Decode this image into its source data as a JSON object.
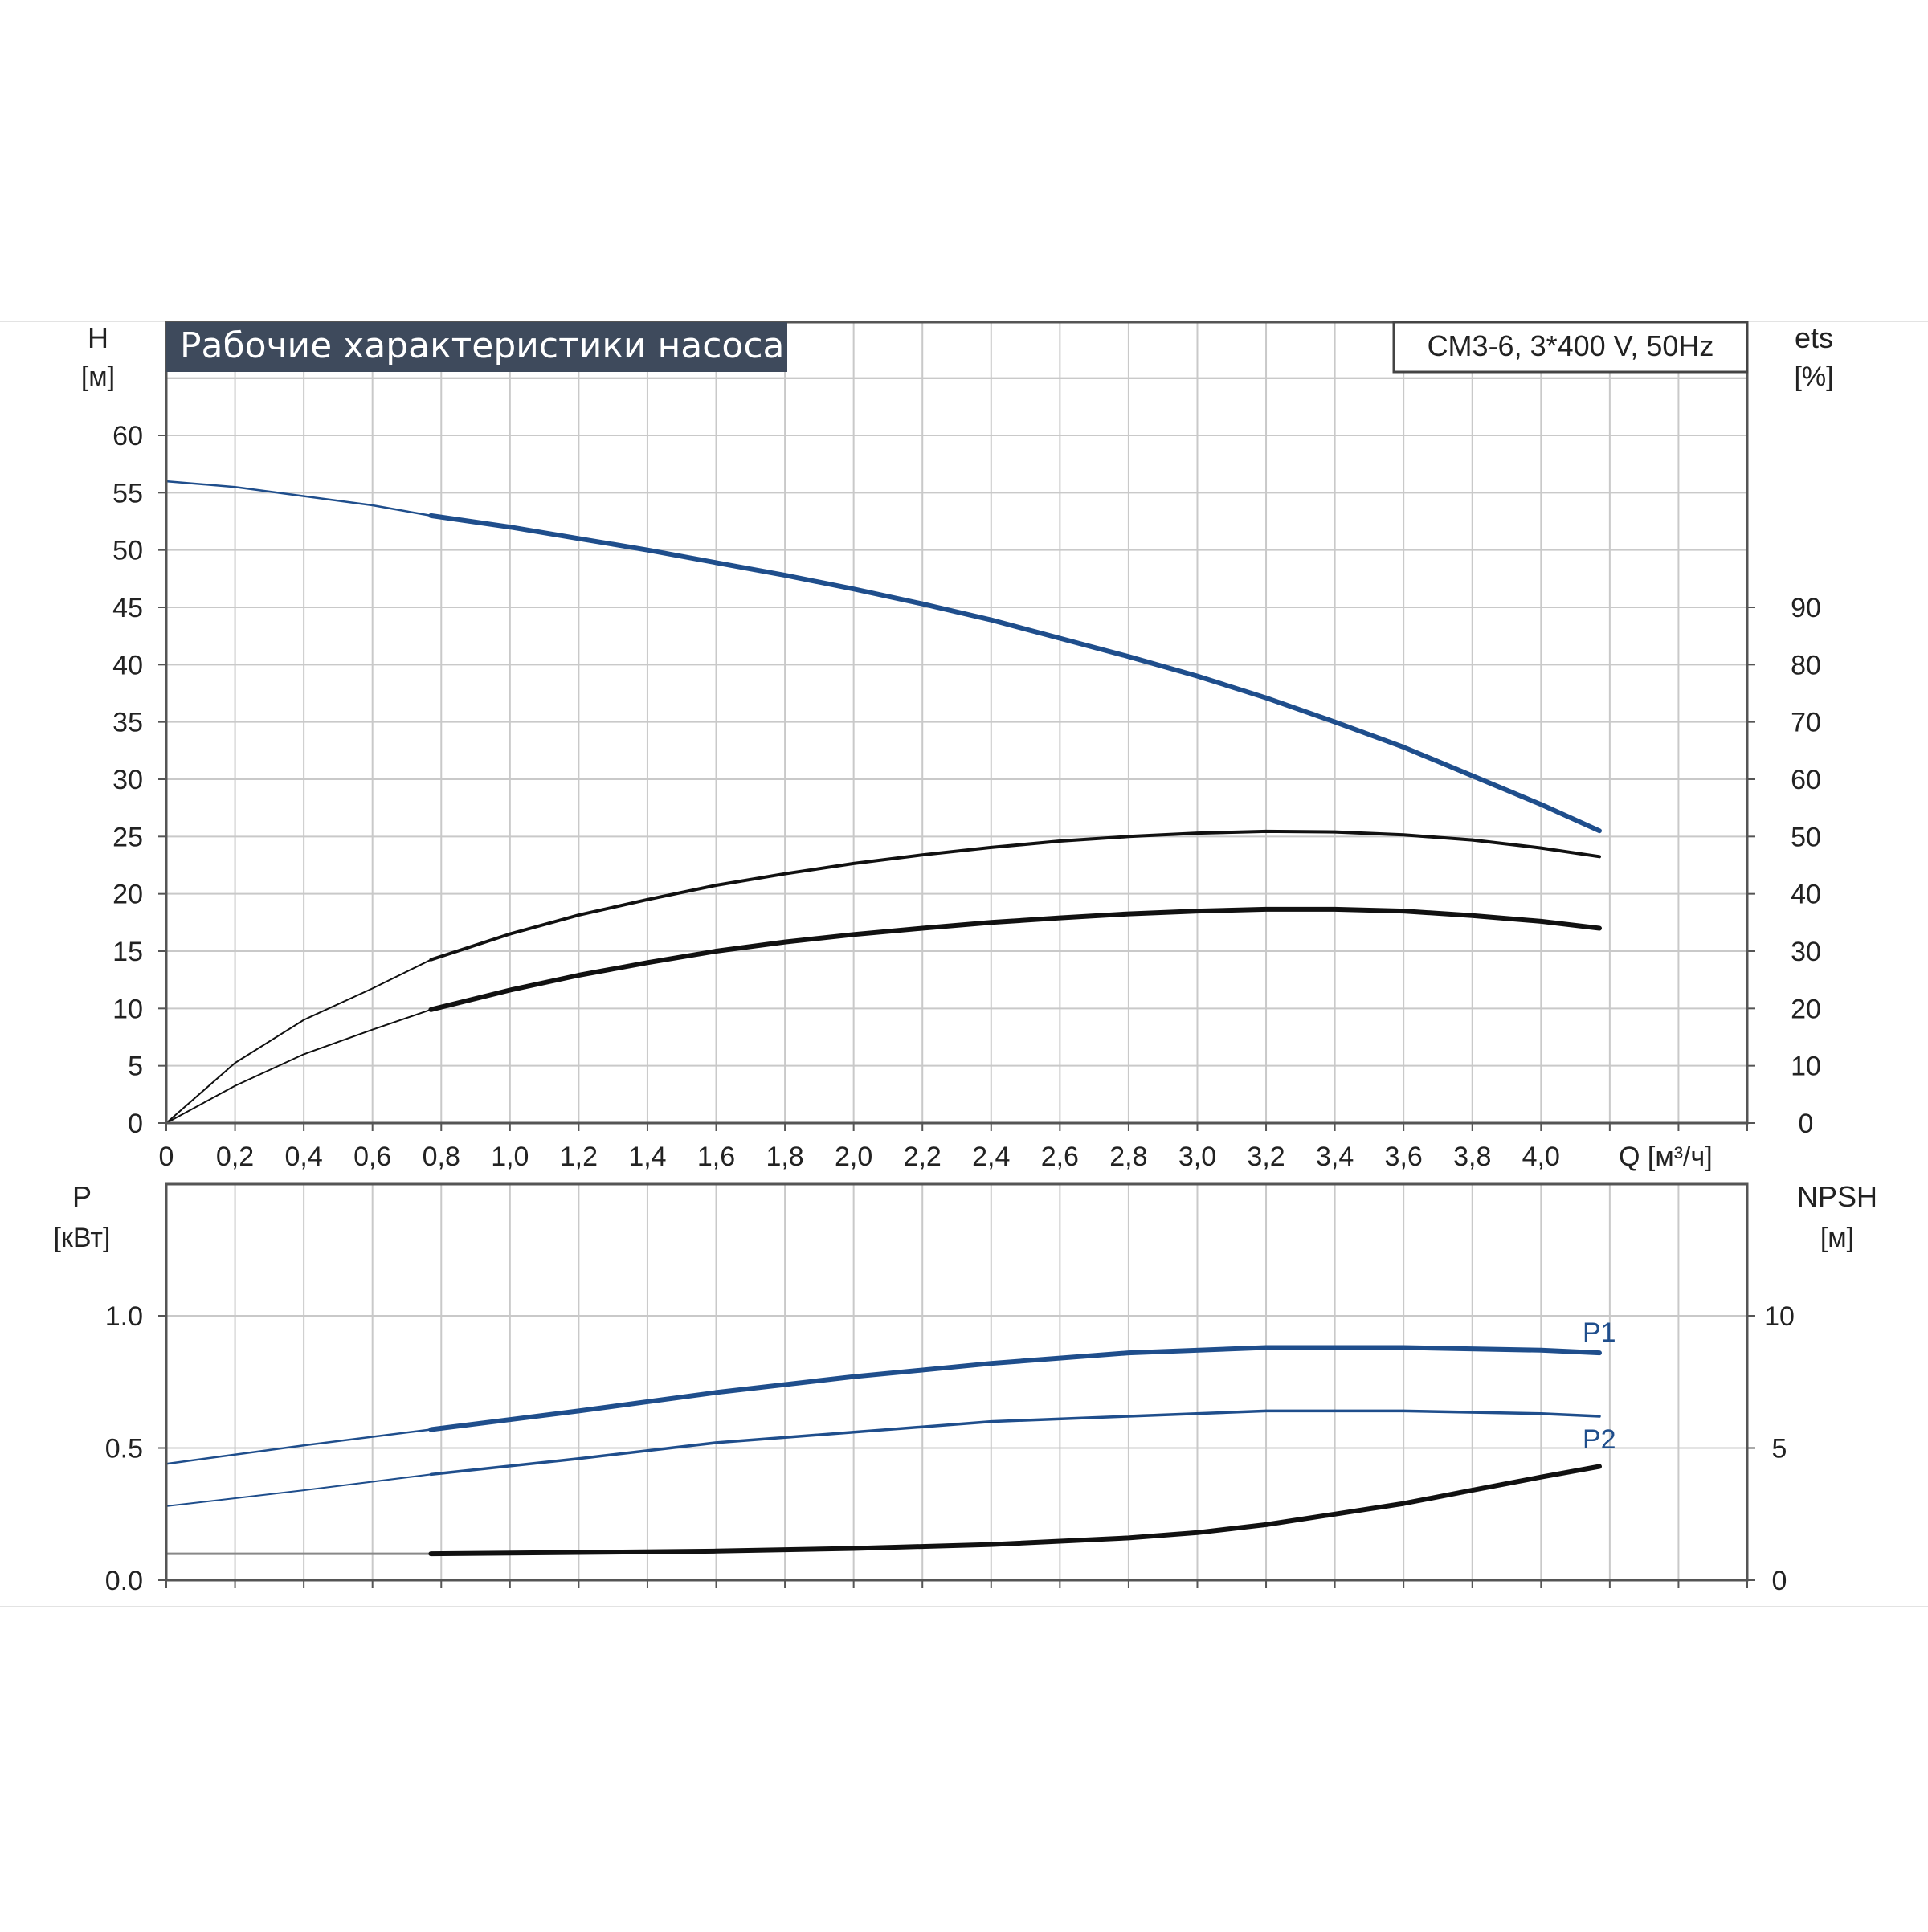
{
  "chart_data": [
    {
      "type": "line",
      "title": "Рабочие характеристики насоса",
      "model_label": "CM3-6, 3*400 V, 50Hz",
      "x_axis": {
        "label": "Q [м³/ч]",
        "range": [
          0,
          4.6
        ],
        "ticks": [
          "0",
          "0,2",
          "0,4",
          "0,6",
          "0,8",
          "1,0",
          "1,2",
          "1,4",
          "1,6",
          "1,8",
          "2,0",
          "2,2",
          "2,4",
          "2,6",
          "2,8",
          "3,0",
          "3,2",
          "3,4",
          "3,6",
          "3,8",
          "4,0"
        ]
      },
      "y_left": {
        "label_line1": "H",
        "label_line2": "[м]",
        "range": [
          0,
          60
        ],
        "ticks": [
          "0",
          "5",
          "10",
          "15",
          "20",
          "25",
          "30",
          "35",
          "40",
          "45",
          "50",
          "55",
          "60"
        ]
      },
      "y_right": {
        "label_line1": "ets",
        "label_line2": "[%]",
        "range": [
          0,
          90
        ],
        "ticks": [
          "0",
          "10",
          "20",
          "30",
          "40",
          "50",
          "60",
          "70",
          "80",
          "90"
        ]
      },
      "grid": true,
      "series": [
        {
          "axis": "left",
          "color": "#1f4e8c",
          "x": [
            0,
            0.2,
            0.4,
            0.6,
            0.77,
            1.0,
            1.2,
            1.4,
            1.6,
            1.8,
            2.0,
            2.2,
            2.4,
            2.6,
            2.8,
            3.0,
            3.2,
            3.4,
            3.6,
            3.8,
            4.0,
            4.17
          ],
          "values": [
            56.0,
            55.5,
            54.7,
            53.9,
            53.0,
            52.0,
            51.0,
            50.0,
            48.9,
            47.8,
            46.6,
            45.3,
            43.9,
            42.3,
            40.7,
            39.0,
            37.1,
            35.0,
            32.8,
            30.3,
            27.8,
            25.5
          ]
        },
        {
          "axis": "right",
          "color": "#111111",
          "x": [
            0,
            0.2,
            0.4,
            0.6,
            0.77,
            1.0,
            1.2,
            1.4,
            1.6,
            1.8,
            2.0,
            2.2,
            2.4,
            2.6,
            2.8,
            3.0,
            3.2,
            3.4,
            3.6,
            3.8,
            4.0,
            4.17
          ],
          "values": [
            0,
            10.5,
            18.0,
            23.5,
            28.5,
            33.0,
            36.3,
            39.0,
            41.5,
            43.5,
            45.3,
            46.8,
            48.1,
            49.2,
            50.0,
            50.6,
            50.9,
            50.8,
            50.3,
            49.4,
            48.0,
            46.5
          ]
        },
        {
          "axis": "right",
          "color": "#111111",
          "x": [
            0,
            0.2,
            0.4,
            0.6,
            0.77,
            1.0,
            1.2,
            1.4,
            1.6,
            1.8,
            2.0,
            2.2,
            2.4,
            2.6,
            2.8,
            3.0,
            3.2,
            3.4,
            3.6,
            3.8,
            4.0,
            4.17
          ],
          "values": [
            0,
            6.5,
            12.0,
            16.3,
            19.8,
            23.2,
            25.8,
            28.0,
            30.0,
            31.6,
            32.9,
            34.0,
            35.0,
            35.8,
            36.5,
            37.0,
            37.3,
            37.3,
            37.0,
            36.2,
            35.2,
            34.0
          ]
        }
      ]
    },
    {
      "type": "line",
      "x_axis": {
        "range": [
          0,
          4.6
        ]
      },
      "y_left": {
        "label_line1": "P",
        "label_line2": "[кВт]",
        "range": [
          0,
          1.5
        ],
        "ticks": [
          "0.0",
          "0.5",
          "1.0"
        ]
      },
      "y_right": {
        "label_line1": "NPSH",
        "label_line2": "[м]",
        "range": [
          0,
          15
        ],
        "ticks": [
          "0",
          "5",
          "10"
        ]
      },
      "grid": true,
      "series": [
        {
          "name": "P1",
          "axis": "left",
          "color": "#1f4e8c",
          "x": [
            0,
            0.4,
            0.77,
            1.2,
            1.6,
            2.0,
            2.4,
            2.8,
            3.2,
            3.6,
            4.0,
            4.17
          ],
          "values": [
            0.44,
            0.51,
            0.57,
            0.64,
            0.71,
            0.77,
            0.82,
            0.86,
            0.88,
            0.88,
            0.87,
            0.86
          ]
        },
        {
          "name": "P2",
          "axis": "left",
          "color": "#1f4e8c",
          "x": [
            0,
            0.4,
            0.77,
            1.2,
            1.6,
            2.0,
            2.4,
            2.8,
            3.2,
            3.6,
            4.0,
            4.17
          ],
          "values": [
            0.28,
            0.34,
            0.4,
            0.46,
            0.52,
            0.56,
            0.6,
            0.62,
            0.64,
            0.64,
            0.63,
            0.62
          ]
        },
        {
          "axis": "right",
          "color": "#111111",
          "x": [
            0,
            0.77,
            1.2,
            1.6,
            2.0,
            2.4,
            2.8,
            3.0,
            3.2,
            3.4,
            3.6,
            3.8,
            4.0,
            4.17
          ],
          "values": [
            1.0,
            1.0,
            1.05,
            1.1,
            1.2,
            1.35,
            1.6,
            1.8,
            2.1,
            2.5,
            2.9,
            3.4,
            3.9,
            4.3
          ]
        }
      ],
      "labels": [
        "P1",
        "P2"
      ]
    }
  ]
}
